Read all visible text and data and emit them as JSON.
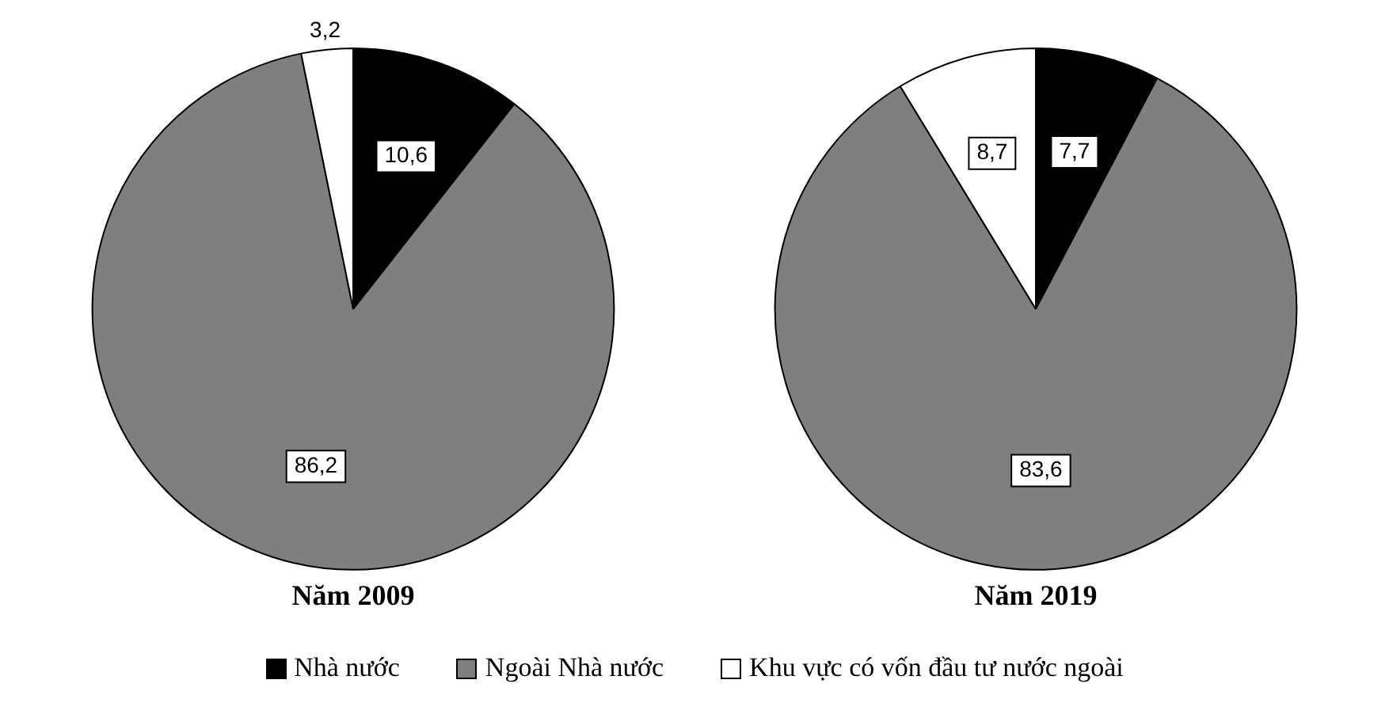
{
  "chart_data": [
    {
      "type": "pie",
      "title": "Năm 2009",
      "categories": [
        "Nhà nước",
        "Ngoài Nhà nước",
        "Khu vực có vốn đầu tư nước ngoài"
      ],
      "values": [
        10.6,
        86.2,
        3.2
      ],
      "value_labels": [
        "10,6",
        "86,2",
        "3,2"
      ],
      "colors": [
        "#000000",
        "#7f7f7f",
        "#ffffff"
      ],
      "legend": "bottom"
    },
    {
      "type": "pie",
      "title": "Năm 2019",
      "categories": [
        null,
        null,
        null
      ],
      "values": [
        7.7,
        83.6,
        8.7
      ],
      "value_labels": [
        "7,7",
        "83,6",
        "8,7"
      ],
      "colors": [
        "#000000",
        "#7f7f7f",
        "#ffffff"
      ]
    }
  ]
}
